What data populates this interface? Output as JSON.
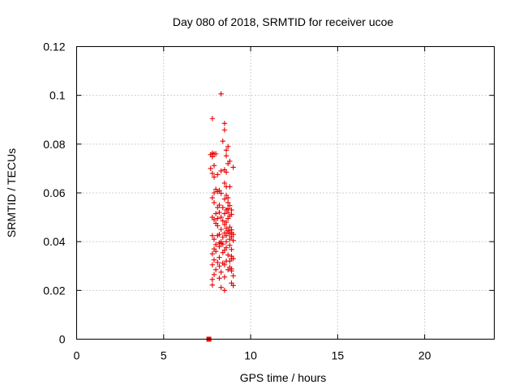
{
  "chart_data": {
    "type": "scatter",
    "title": "Day 080 of 2018, SRMTID for receiver ucoe",
    "xlabel": "GPS time / hours",
    "ylabel": "SRMTID / TECUs",
    "xlim": [
      0,
      24
    ],
    "ylim": [
      0,
      0.12
    ],
    "xticks": [
      0,
      5,
      10,
      15,
      20
    ],
    "xtick_labels": [
      "0",
      "5",
      "10",
      "15",
      "20"
    ],
    "yticks": [
      0,
      0.02,
      0.04,
      0.06,
      0.08,
      0.1,
      0.12
    ],
    "ytick_labels": [
      "0",
      "0.02",
      "0.04",
      "0.06",
      "0.08",
      "0.1",
      "0.12"
    ],
    "grid": true,
    "marker": "plus",
    "color": "#e60000",
    "series": [
      {
        "name": "SRMTID",
        "points": [
          [
            8.3,
            0.1006
          ],
          [
            7.8,
            0.0905
          ],
          [
            8.5,
            0.0885
          ],
          [
            8.5,
            0.0858
          ],
          [
            8.4,
            0.0812
          ],
          [
            8.7,
            0.079
          ],
          [
            8.6,
            0.0775
          ],
          [
            7.8,
            0.0763
          ],
          [
            7.9,
            0.076
          ],
          [
            7.7,
            0.0757
          ],
          [
            8.0,
            0.076
          ],
          [
            8.6,
            0.0752
          ],
          [
            7.8,
            0.0748
          ],
          [
            8.8,
            0.073
          ],
          [
            8.7,
            0.072
          ],
          [
            7.9,
            0.0712
          ],
          [
            9.0,
            0.0705
          ],
          [
            7.7,
            0.07
          ],
          [
            8.5,
            0.0695
          ],
          [
            8.3,
            0.069
          ],
          [
            8.6,
            0.0685
          ],
          [
            7.8,
            0.068
          ],
          [
            8.1,
            0.0675
          ],
          [
            7.9,
            0.0665
          ],
          [
            8.5,
            0.064
          ],
          [
            8.6,
            0.0625
          ],
          [
            8.8,
            0.0625
          ],
          [
            8.0,
            0.0615
          ],
          [
            8.2,
            0.061
          ],
          [
            7.9,
            0.06
          ],
          [
            8.1,
            0.0605
          ],
          [
            8.3,
            0.0598
          ],
          [
            8.6,
            0.059
          ],
          [
            7.8,
            0.058
          ],
          [
            8.7,
            0.058
          ],
          [
            8.5,
            0.0575
          ],
          [
            7.9,
            0.056
          ],
          [
            8.7,
            0.056
          ],
          [
            8.2,
            0.055
          ],
          [
            8.8,
            0.0548
          ],
          [
            8.1,
            0.054
          ],
          [
            8.4,
            0.054
          ],
          [
            8.7,
            0.0535
          ],
          [
            8.6,
            0.053
          ],
          [
            8.9,
            0.053
          ],
          [
            8.2,
            0.052
          ],
          [
            8.7,
            0.052
          ],
          [
            8.0,
            0.0515
          ],
          [
            8.5,
            0.0515
          ],
          [
            8.9,
            0.0512
          ],
          [
            7.8,
            0.05
          ],
          [
            8.8,
            0.0505
          ],
          [
            8.3,
            0.05
          ],
          [
            8.1,
            0.0495
          ],
          [
            8.7,
            0.0495
          ],
          [
            7.9,
            0.049
          ],
          [
            8.4,
            0.0485
          ],
          [
            8.6,
            0.048
          ],
          [
            8.0,
            0.0475
          ],
          [
            8.5,
            0.047
          ],
          [
            8.1,
            0.0465
          ],
          [
            8.8,
            0.046
          ],
          [
            8.6,
            0.0455
          ],
          [
            8.3,
            0.045
          ],
          [
            8.9,
            0.0448
          ],
          [
            8.7,
            0.0445
          ],
          [
            8.7,
            0.044
          ],
          [
            8.9,
            0.0438
          ],
          [
            8.5,
            0.0435
          ],
          [
            8.8,
            0.0432
          ],
          [
            8.2,
            0.043
          ],
          [
            9.0,
            0.043
          ],
          [
            7.8,
            0.0425
          ],
          [
            8.1,
            0.0425
          ],
          [
            8.6,
            0.0425
          ],
          [
            8.9,
            0.042
          ],
          [
            8.4,
            0.0418
          ],
          [
            7.9,
            0.041
          ],
          [
            8.8,
            0.041
          ],
          [
            9.0,
            0.0405
          ],
          [
            8.3,
            0.04
          ],
          [
            8.6,
            0.04
          ],
          [
            8.2,
            0.0395
          ],
          [
            8.3,
            0.0392
          ],
          [
            8.4,
            0.039
          ],
          [
            8.0,
            0.0388
          ],
          [
            8.8,
            0.0385
          ],
          [
            8.2,
            0.038
          ],
          [
            8.6,
            0.0375
          ],
          [
            7.9,
            0.037
          ],
          [
            8.9,
            0.0368
          ],
          [
            8.5,
            0.0365
          ],
          [
            8.0,
            0.036
          ],
          [
            8.4,
            0.0355
          ],
          [
            7.8,
            0.035
          ],
          [
            8.7,
            0.0345
          ],
          [
            8.9,
            0.034
          ],
          [
            8.2,
            0.0335
          ],
          [
            8.9,
            0.033
          ],
          [
            9.0,
            0.033
          ],
          [
            7.9,
            0.0325
          ],
          [
            8.6,
            0.032
          ],
          [
            8.8,
            0.032
          ],
          [
            8.1,
            0.0315
          ],
          [
            8.4,
            0.0312
          ],
          [
            7.8,
            0.0305
          ],
          [
            8.5,
            0.0305
          ],
          [
            8.2,
            0.03
          ],
          [
            8.8,
            0.0295
          ],
          [
            8.9,
            0.0288
          ],
          [
            8.0,
            0.0285
          ],
          [
            8.7,
            0.0285
          ],
          [
            8.9,
            0.028
          ],
          [
            8.3,
            0.0275
          ],
          [
            7.9,
            0.0265
          ],
          [
            9.0,
            0.026
          ],
          [
            8.5,
            0.0255
          ],
          [
            8.2,
            0.025
          ],
          [
            7.8,
            0.0245
          ],
          [
            8.9,
            0.023
          ],
          [
            7.8,
            0.0222
          ],
          [
            9.0,
            0.022
          ],
          [
            8.3,
            0.0212
          ],
          [
            8.5,
            0.02
          ]
        ],
        "zero_points": [
          [
            7.6,
            0.0
          ]
        ]
      }
    ]
  }
}
